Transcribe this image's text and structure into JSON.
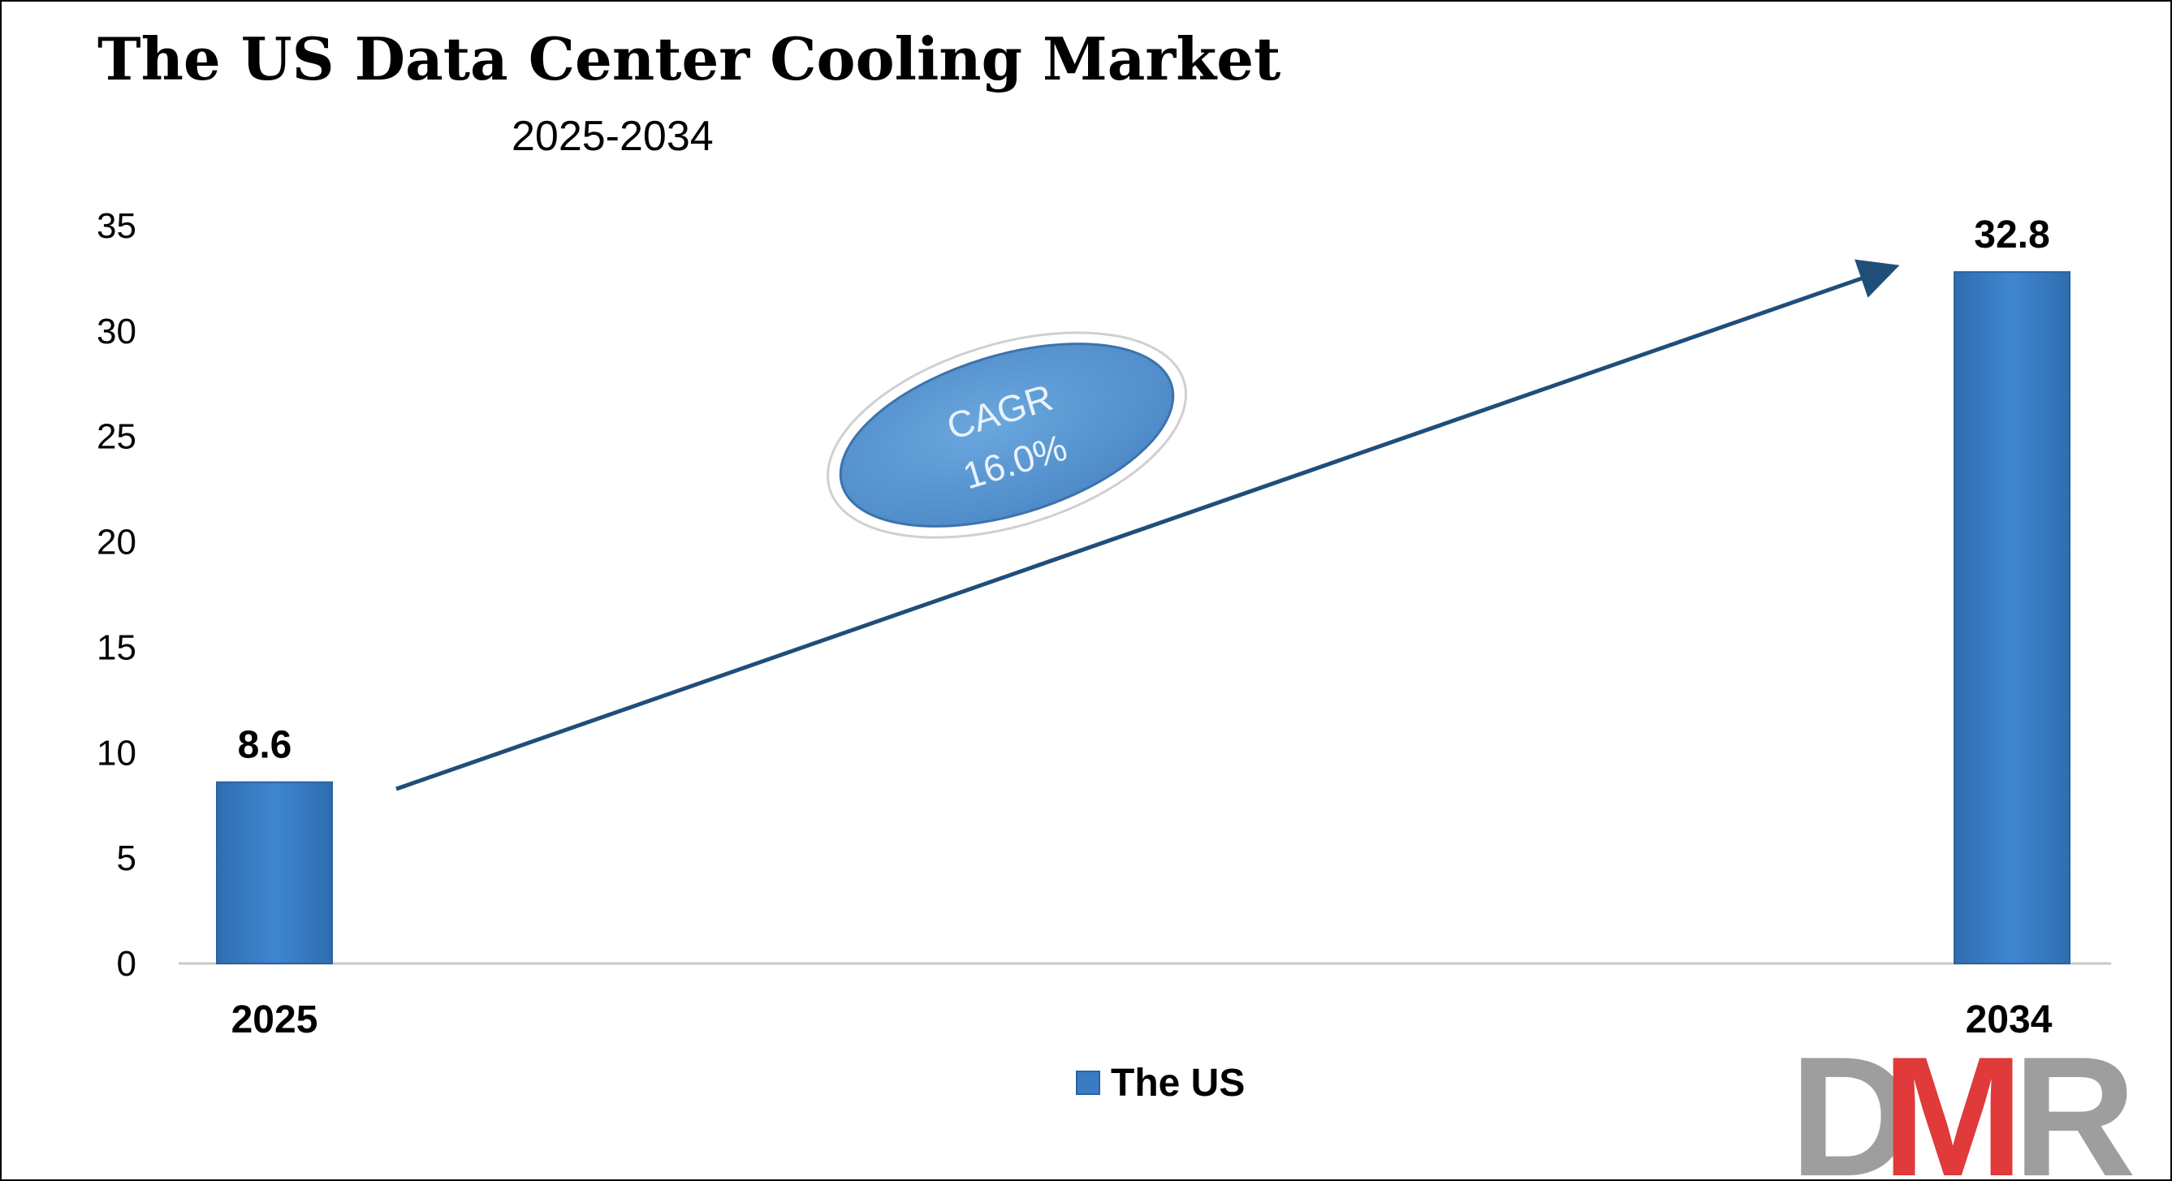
{
  "chart_data": {
    "type": "bar",
    "title": "The US Data Center Cooling Market",
    "subtitle": "2025-2034",
    "categories": [
      "2025",
      "2034"
    ],
    "series": [
      {
        "name": "The US",
        "values": [
          8.6,
          32.8
        ],
        "color": "#3a7cc4"
      }
    ],
    "data_labels": [
      "8.6",
      "32.8"
    ],
    "ylim": [
      0,
      35
    ],
    "yticks": [
      0,
      5,
      10,
      15,
      20,
      25,
      30,
      35
    ],
    "ytick_labels": [
      "0",
      "5",
      "10",
      "15",
      "20",
      "25",
      "30",
      "35"
    ],
    "grid": false,
    "legend": {
      "position": "bottom",
      "entries": [
        "The US"
      ]
    },
    "annotation": {
      "line1": "CAGR",
      "line2": "16.0%",
      "color": "#5b9bd5"
    },
    "trend_arrow_color": "#1f4e79"
  },
  "logo": {
    "text": "DMR",
    "colors": [
      "#9e9e9e",
      "#e03a3a",
      "#9e9e9e"
    ]
  }
}
